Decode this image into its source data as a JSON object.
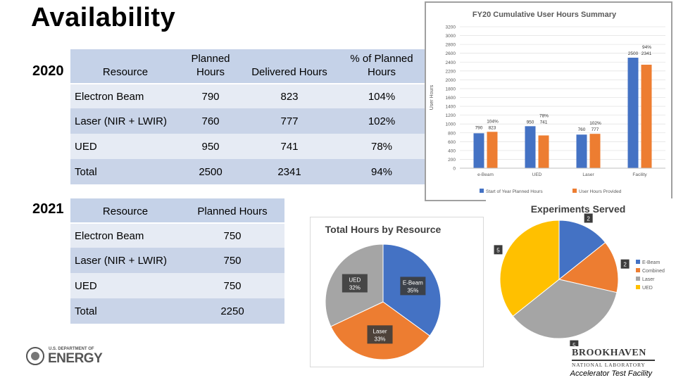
{
  "slide": {
    "title": "Availability",
    "year_2020": "2020",
    "year_2021": "2021",
    "footer_left": "U.S. DEPARTMENT OF",
    "footer_left_big": "ENERGY",
    "footer_right_logo": "BROOKHAVEN",
    "footer_right_sub": "NATIONAL LABORATORY",
    "footer_right_caption": "Accelerator Test Facility"
  },
  "table_2020": {
    "headers": [
      "Resource",
      "Planned Hours",
      "Delivered Hours",
      "% of Planned Hours"
    ],
    "rows": [
      [
        "Electron Beam",
        "790",
        "823",
        "104%"
      ],
      [
        "Laser (NIR + LWIR)",
        "760",
        "777",
        "102%"
      ],
      [
        "UED",
        "950",
        "741",
        "78%"
      ],
      [
        "Total",
        "2500",
        "2341",
        "94%"
      ]
    ]
  },
  "table_2021": {
    "headers": [
      "Resource",
      "Planned Hours"
    ],
    "rows": [
      [
        "Electron Beam",
        "750"
      ],
      [
        "Laser (NIR + LWIR)",
        "750"
      ],
      [
        "UED",
        "750"
      ],
      [
        "Total",
        "2250"
      ]
    ]
  },
  "chart_data": [
    {
      "type": "bar",
      "title": "FY20 Cumulative User Hours Summary",
      "ylabel": "User Hours",
      "xlabel": "",
      "ylim": [
        0,
        3200
      ],
      "yticks": [
        0,
        200,
        400,
        600,
        800,
        1000,
        1200,
        1400,
        1600,
        1800,
        2000,
        2200,
        2400,
        2600,
        2800,
        3000,
        3200
      ],
      "categories": [
        "e-Beam",
        "UED",
        "Laser",
        "Facility"
      ],
      "series": [
        {
          "name": "Start of Year Planned Hours",
          "color": "#4472c4",
          "values": [
            790,
            950,
            760,
            2500
          ]
        },
        {
          "name": "User Hours Provided",
          "color": "#ed7d31",
          "values": [
            823,
            741,
            777,
            2341
          ]
        }
      ],
      "annotations": [
        {
          "category": "e-Beam",
          "pct": "104%",
          "planned": "790",
          "provided": "823"
        },
        {
          "category": "UED",
          "pct": "78%",
          "planned": "950",
          "provided": "741"
        },
        {
          "category": "Laser",
          "pct": "102%",
          "planned": "760",
          "provided": "777"
        },
        {
          "category": "Facility",
          "pct": "94%",
          "planned": "2500",
          "provided": "2341"
        }
      ]
    },
    {
      "type": "pie",
      "title": "Total Hours by Resource",
      "slices": [
        {
          "label": "E-Beam",
          "pct_text": "35%",
          "value": 35,
          "color": "#4472c4"
        },
        {
          "label": "Laser",
          "pct_text": "33%",
          "value": 33,
          "color": "#ed7d31"
        },
        {
          "label": "UED",
          "pct_text": "32%",
          "value": 32,
          "color": "#a5a5a5"
        }
      ]
    },
    {
      "type": "pie",
      "title": "Experiments Served",
      "slices": [
        {
          "label": "E-Beam",
          "value": 2,
          "color": "#4472c4"
        },
        {
          "label": "Combined",
          "value": 2,
          "color": "#ed7d31"
        },
        {
          "label": "Laser",
          "value": 5,
          "color": "#a5a5a5"
        },
        {
          "label": "UED",
          "value": 5,
          "color": "#ffc000"
        }
      ]
    }
  ]
}
